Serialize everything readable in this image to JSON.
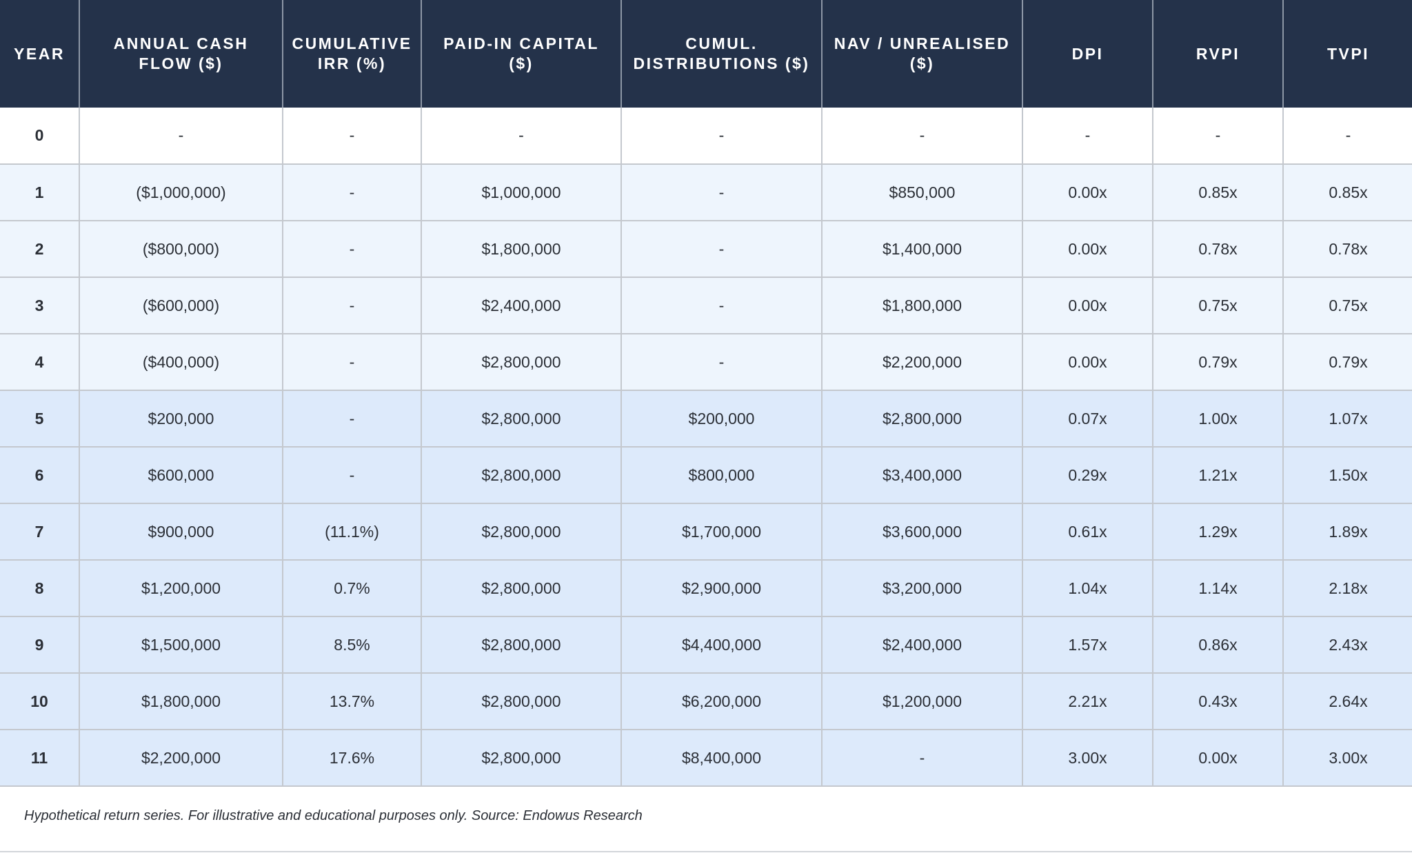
{
  "table": {
    "headers": [
      "YEAR",
      "ANNUAL CASH FLOW ($)",
      "CUMULATIVE IRR (%)",
      "PAID-IN CAPITAL ($)",
      "CUMUL. DISTRIBUTIONS ($)",
      "NAV / UNREALISED ($)",
      "DPI",
      "RVPI",
      "TVPI"
    ],
    "rows": [
      [
        "0",
        "-",
        "-",
        "-",
        "-",
        "-",
        "-",
        "-",
        "-"
      ],
      [
        "1",
        "($1,000,000)",
        "-",
        "$1,000,000",
        "-",
        "$850,000",
        "0.00x",
        "0.85x",
        "0.85x"
      ],
      [
        "2",
        "($800,000)",
        "-",
        "$1,800,000",
        "-",
        "$1,400,000",
        "0.00x",
        "0.78x",
        "0.78x"
      ],
      [
        "3",
        "($600,000)",
        "-",
        "$2,400,000",
        "-",
        "$1,800,000",
        "0.00x",
        "0.75x",
        "0.75x"
      ],
      [
        "4",
        "($400,000)",
        "-",
        "$2,800,000",
        "-",
        "$2,200,000",
        "0.00x",
        "0.79x",
        "0.79x"
      ],
      [
        "5",
        "$200,000",
        "-",
        "$2,800,000",
        "$200,000",
        "$2,800,000",
        "0.07x",
        "1.00x",
        "1.07x"
      ],
      [
        "6",
        "$600,000",
        "-",
        "$2,800,000",
        "$800,000",
        "$3,400,000",
        "0.29x",
        "1.21x",
        "1.50x"
      ],
      [
        "7",
        "$900,000",
        "(11.1%)",
        "$2,800,000",
        "$1,700,000",
        "$3,600,000",
        "0.61x",
        "1.29x",
        "1.89x"
      ],
      [
        "8",
        "$1,200,000",
        "0.7%",
        "$2,800,000",
        "$2,900,000",
        "$3,200,000",
        "1.04x",
        "1.14x",
        "2.18x"
      ],
      [
        "9",
        "$1,500,000",
        "8.5%",
        "$2,800,000",
        "$4,400,000",
        "$2,400,000",
        "1.57x",
        "0.86x",
        "2.43x"
      ],
      [
        "10",
        "$1,800,000",
        "13.7%",
        "$2,800,000",
        "$6,200,000",
        "$1,200,000",
        "2.21x",
        "0.43x",
        "2.64x"
      ],
      [
        "11",
        "$2,200,000",
        "17.6%",
        "$2,800,000",
        "$8,400,000",
        "-",
        "3.00x",
        "0.00x",
        "3.00x"
      ]
    ]
  },
  "footnote": "Hypothetical return series. For illustrative and educational purposes only. Source: Endowus Research",
  "colors": {
    "header_bg": "#24324a",
    "header_text": "#ffffff",
    "row_white": "#ffffff",
    "row_light": "#eef5fd",
    "row_mid": "#ddeafb",
    "grid_line": "#c4c8ce"
  }
}
